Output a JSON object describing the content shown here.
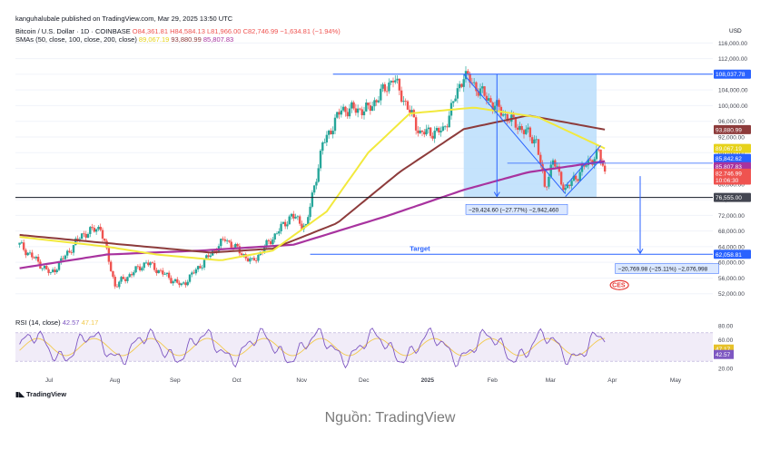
{
  "header": {
    "published": "kanguhalubale published on TradingView.com, Mar 29, 2025 13:50 UTC",
    "symbol": "Bitcoin / U.S. Dollar · 1D · COINBASE",
    "ohlc": "O84,361.81 H84,584.13 L81,966.00 C82,746.99 −1,634.81 (−1.94%)",
    "sma_label": "SMAs (50, close, 100, close, 200, close)",
    "sma_values": [
      "89,067.19",
      "93,880.99",
      "85,807.83"
    ]
  },
  "colors": {
    "up": "#26a69a",
    "down": "#ef5350",
    "sma50": "#f2e93d",
    "sma100": "#8d3b3b",
    "sma200": "#a8339f",
    "blue": "#2962ff",
    "box": "#bbdefb",
    "black": "#131722"
  },
  "chart_data": {
    "type": "line",
    "title": "Bitcoin / U.S. Dollar · 1D · COINBASE",
    "currency": "USD",
    "y_range": [
      48000,
      117000
    ],
    "y_ticks": [
      116000,
      112000,
      108000,
      104000,
      100000,
      96000,
      92000,
      88000,
      84000,
      80000,
      76000,
      72000,
      68000,
      64000,
      60000,
      56000,
      52000
    ],
    "y_tick_labels": [
      "116,000.00",
      "112,000.00",
      "108,000.00",
      "104,000.00",
      "100,000.00",
      "96,000.00",
      "92,000.00",
      "88,000.00",
      "84,000.00",
      "80,000.00",
      "76,000.00",
      "72,000.00",
      "68,000.00",
      "64,000.00",
      "60,000.00",
      "56,000.00",
      "52,000.00"
    ],
    "x_labels": [
      "Jul",
      "Aug",
      "Sep",
      "Oct",
      "Nov",
      "Dec",
      "2025",
      "Feb",
      "Mar",
      "Apr",
      "May"
    ],
    "price_series": {
      "name": "BTCUSD close (approx.)",
      "x": [
        "2024-06-20",
        "2024-07-05",
        "2024-07-20",
        "2024-07-29",
        "2024-08-05",
        "2024-08-20",
        "2024-09-06",
        "2024-09-27",
        "2024-10-10",
        "2024-10-29",
        "2024-11-05",
        "2024-11-13",
        "2024-11-22",
        "2024-12-05",
        "2024-12-17",
        "2024-12-30",
        "2025-01-10",
        "2025-01-20",
        "2025-01-31",
        "2025-02-10",
        "2025-02-24",
        "2025-02-28",
        "2025-03-04",
        "2025-03-10",
        "2025-03-20",
        "2025-03-26",
        "2025-03-29"
      ],
      "values": [
        64500,
        57000,
        67000,
        69000,
        54000,
        60000,
        54000,
        66000,
        60000,
        72000,
        69000,
        90000,
        99000,
        99000,
        107000,
        93000,
        93500,
        108000,
        102000,
        97000,
        91000,
        79000,
        86000,
        78500,
        85000,
        88000,
        82747
      ]
    },
    "sma50": {
      "name": "SMA 50",
      "last": 89067.19,
      "x": [
        "2024-06-20",
        "2024-08-01",
        "2024-08-25",
        "2024-09-25",
        "2024-10-20",
        "2024-11-15",
        "2024-12-05",
        "2024-12-25",
        "2025-01-25",
        "2025-02-25",
        "2025-03-29"
      ],
      "values": [
        66500,
        64000,
        62000,
        60500,
        63000,
        73000,
        88000,
        98000,
        99500,
        97000,
        89067
      ]
    },
    "sma100": {
      "name": "SMA 100",
      "last": 93880.99,
      "x": [
        "2024-06-20",
        "2024-07-20",
        "2024-08-20",
        "2024-09-20",
        "2024-10-20",
        "2024-11-20",
        "2024-12-20",
        "2025-01-20",
        "2025-02-20",
        "2025-03-29"
      ],
      "values": [
        67000,
        65500,
        64000,
        62500,
        63500,
        70000,
        83000,
        94000,
        97500,
        93881
      ]
    },
    "sma200": {
      "name": "SMA 200",
      "last": 85807.83,
      "x": [
        "2024-06-20",
        "2024-08-01",
        "2024-09-15",
        "2024-10-30",
        "2024-12-15",
        "2025-01-20",
        "2025-02-20",
        "2025-03-29"
      ],
      "values": [
        58500,
        62000,
        63000,
        64500,
        72000,
        78500,
        83000,
        85808
      ]
    },
    "levels": [
      {
        "label": "108,037.78",
        "value": 108037.78
      },
      {
        "label": "76,555.00",
        "value": 76555.0
      },
      {
        "label": "62,058.81",
        "value": 62058.81
      }
    ],
    "right_tags": [
      "93,880.99",
      "89,067.19",
      "85,842.62",
      "85,807.83",
      "82,746.99",
      "10:06:30"
    ],
    "annotations": {
      "drop_box": "−29,424.60 (−27.77%) −2,942,460",
      "target_label": "Target",
      "target_box": "−20,769.98 (−25.11%) −2,076,998"
    },
    "rsi": {
      "label": "RSI (14, close)",
      "values_label": [
        "42.57",
        "47.17"
      ],
      "y_ticks": [
        "80.00",
        "60.00",
        "20.00"
      ],
      "last": 42.57,
      "ma_last": 47.17
    }
  },
  "footer": {
    "brand": "TradingView",
    "caption": "Nguồn: TradingView"
  }
}
